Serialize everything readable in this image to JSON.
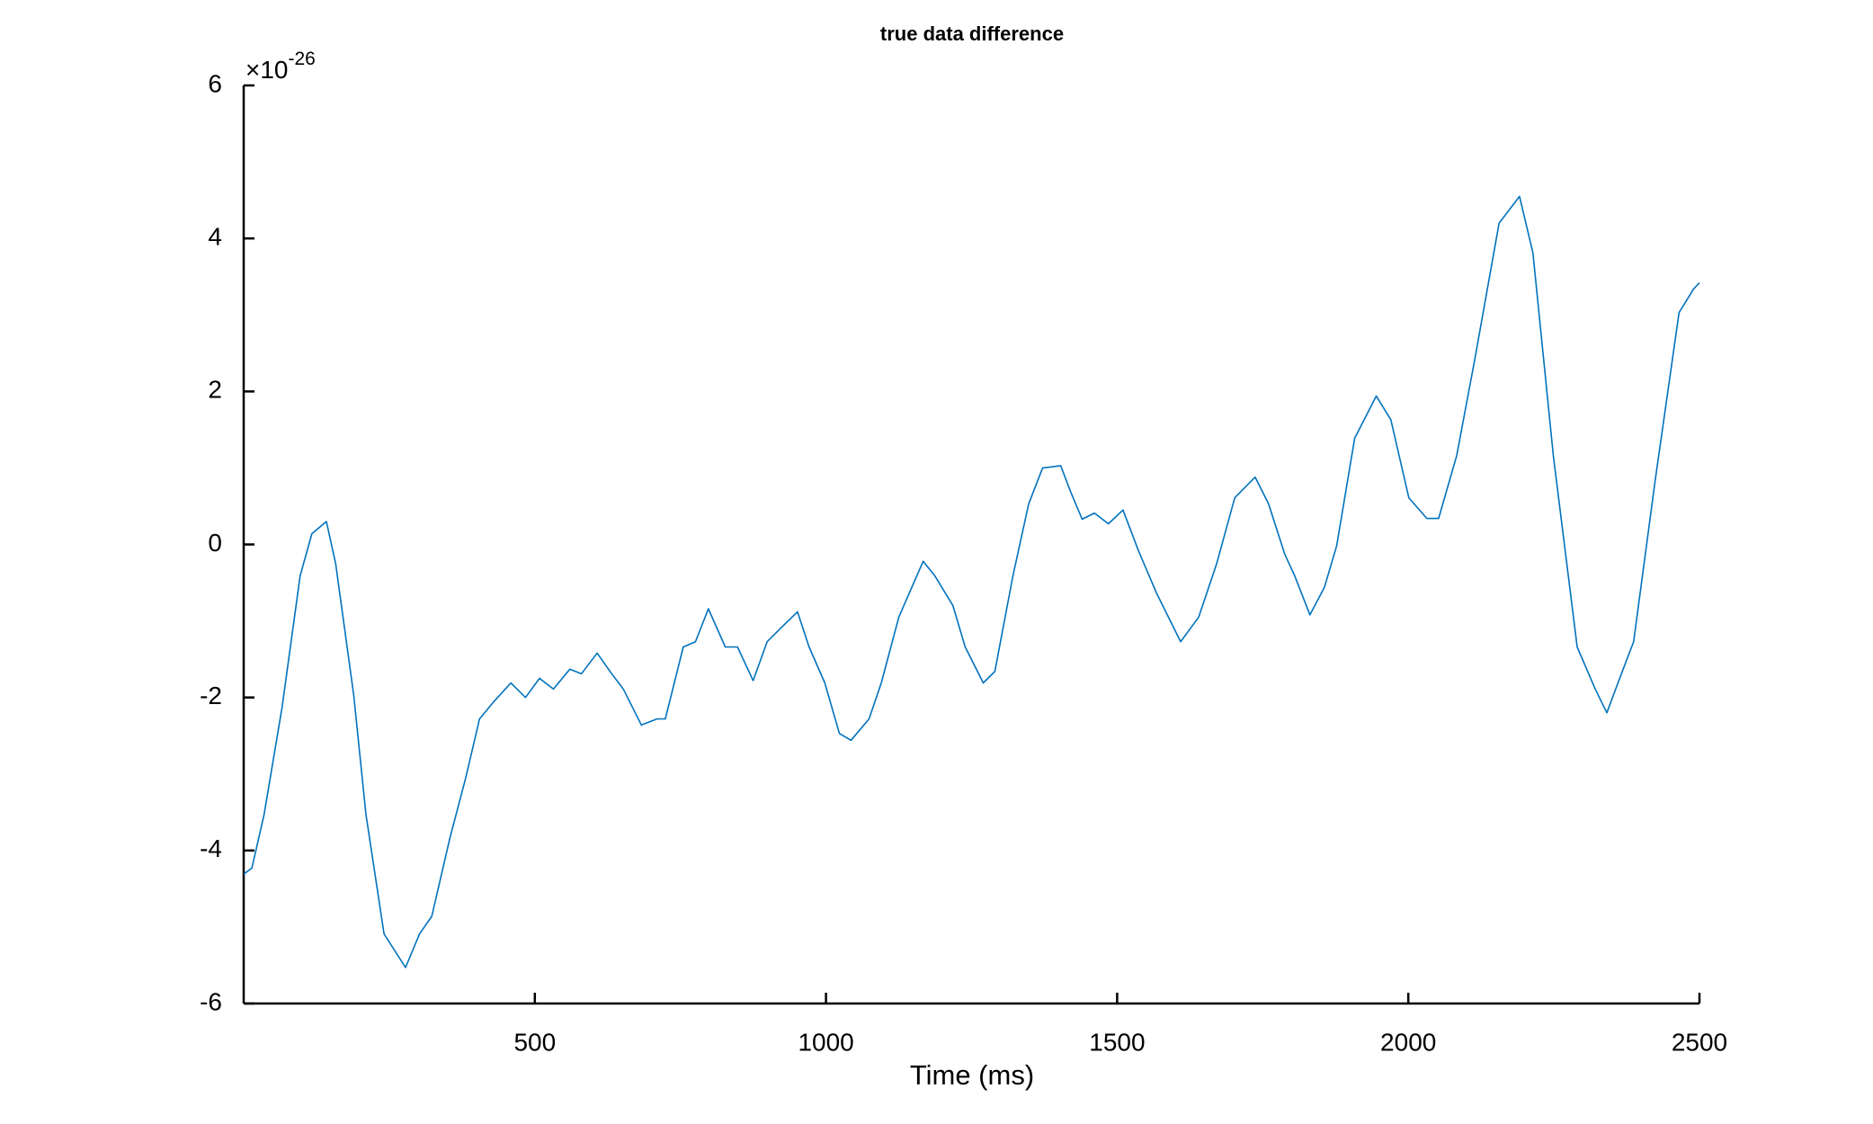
{
  "chart_data": {
    "type": "line",
    "title": "true data difference",
    "xlabel": "Time (ms)",
    "y_multiplier": {
      "base": "×10",
      "exponent": "-26"
    },
    "xlim": [
      0,
      2500
    ],
    "xticks": [
      500,
      1000,
      1500,
      2000,
      2500
    ],
    "ylim": [
      -6,
      6
    ],
    "yticks": [
      -6,
      -4,
      -2,
      0,
      2,
      4,
      6
    ],
    "grid": false,
    "series": [
      {
        "color": "#0072bd",
        "x": [
          0,
          14,
          35,
          66,
          97,
          117,
          142,
          158,
          189,
          210,
          241,
          278,
          302,
          323,
          354,
          381,
          405,
          430,
          459,
          484,
          508,
          532,
          560,
          580,
          607,
          632,
          652,
          683,
          710,
          724,
          755,
          776,
          798,
          827,
          848,
          875,
          899,
          924,
          951,
          971,
          998,
          1023,
          1043,
          1074,
          1095,
          1125,
          1167,
          1187,
          1218,
          1239,
          1270,
          1290,
          1321,
          1348,
          1372,
          1403,
          1420,
          1440,
          1461,
          1485,
          1510,
          1537,
          1568,
          1609,
          1640,
          1671,
          1702,
          1737,
          1760,
          1788,
          1805,
          1831,
          1856,
          1877,
          1908,
          1945,
          1970,
          2001,
          2032,
          2052,
          2083,
          2114,
          2156,
          2191,
          2214,
          2249,
          2290,
          2321,
          2341,
          2366,
          2387,
          2424,
          2465,
          2490,
          2500
        ],
        "values": [
          -4.31,
          -4.23,
          -3.53,
          -2.13,
          -0.41,
          0.14,
          0.3,
          -0.25,
          -1.97,
          -3.53,
          -5.09,
          -5.53,
          -5.09,
          -4.86,
          -3.84,
          -3.06,
          -2.28,
          -2.05,
          -1.81,
          -2.0,
          -1.75,
          -1.89,
          -1.63,
          -1.69,
          -1.42,
          -1.69,
          -1.89,
          -2.36,
          -2.28,
          -2.28,
          -1.34,
          -1.27,
          -0.84,
          -1.34,
          -1.34,
          -1.78,
          -1.27,
          -1.08,
          -0.88,
          -1.34,
          -1.81,
          -2.47,
          -2.56,
          -2.28,
          -1.81,
          -0.95,
          -0.22,
          -0.41,
          -0.8,
          -1.34,
          -1.81,
          -1.66,
          -0.41,
          0.53,
          1.0,
          1.03,
          0.69,
          0.33,
          0.41,
          0.27,
          0.45,
          -0.09,
          -0.64,
          -1.27,
          -0.95,
          -0.25,
          0.61,
          0.88,
          0.53,
          -0.13,
          -0.41,
          -0.92,
          -0.56,
          -0.02,
          1.39,
          1.94,
          1.63,
          0.61,
          0.34,
          0.34,
          1.16,
          2.41,
          4.2,
          4.55,
          3.81,
          1.16,
          -1.34,
          -1.89,
          -2.2,
          -1.69,
          -1.27,
          0.84,
          3.03,
          3.34,
          3.42
        ]
      }
    ]
  }
}
